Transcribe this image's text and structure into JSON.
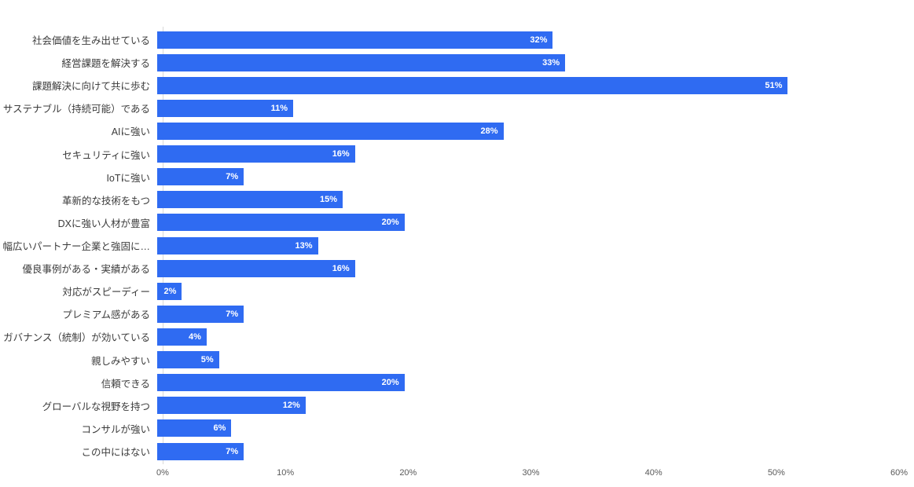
{
  "chart_data": {
    "type": "bar",
    "orientation": "horizontal",
    "title": "",
    "xlabel": "",
    "ylabel": "",
    "categories": [
      "社会価値を生み出せている",
      "経営課題を解決する",
      "課題解決に向けて共に歩む",
      "サステナブル（持続可能）である",
      "AIに強い",
      "セキュリティに強い",
      "IoTに強い",
      "革新的な技術をもつ",
      "DXに強い人材が豊富",
      "幅広いパートナー企業と強固に…",
      "優良事例がある・実績がある",
      "対応がスピーディー",
      "プレミアム感がある",
      "ガバナンス（統制）が効いている",
      "親しみやすい",
      "信頼できる",
      "グローバルな視野を持つ",
      "コンサルが強い",
      "この中にはない"
    ],
    "values": [
      32,
      33,
      51,
      11,
      28,
      16,
      7,
      15,
      20,
      13,
      16,
      2,
      7,
      4,
      5,
      20,
      12,
      6,
      7
    ],
    "value_labels": [
      "32%",
      "33%",
      "51%",
      "11%",
      "28%",
      "16%",
      "7%",
      "15%",
      "20%",
      "13%",
      "16%",
      "2%",
      "7%",
      "4%",
      "5%",
      "20%",
      "12%",
      "6%",
      "7%"
    ],
    "xlim": [
      0,
      60
    ],
    "x_ticks": [
      "0%",
      "10%",
      "20%",
      "30%",
      "40%",
      "50%",
      "60%"
    ],
    "grid": "off",
    "legend": "none",
    "bar_color": "#2f6bf2",
    "value_label_color": "#ffffff",
    "axis_line_color": "#d9d9d9",
    "tick_label_color": "#595959",
    "category_label_color": "#3b3b3b"
  }
}
